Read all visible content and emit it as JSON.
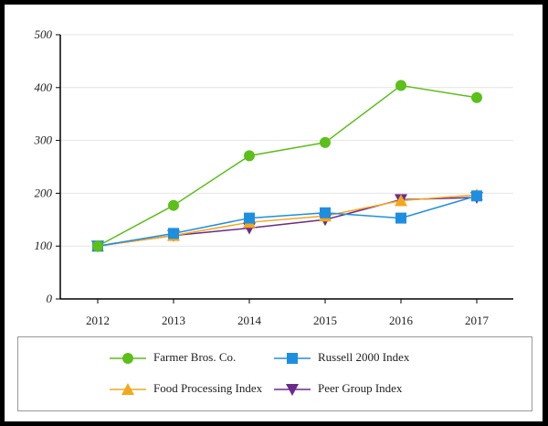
{
  "chart_data": {
    "type": "line",
    "x": [
      "2012",
      "2013",
      "2014",
      "2015",
      "2016",
      "2017"
    ],
    "ylim": [
      0,
      500
    ],
    "yticks": [
      0,
      100,
      200,
      300,
      400,
      500
    ],
    "grid": true,
    "legend_position": "bottom",
    "series": [
      {
        "name": "Farmer Bros. Co.",
        "color": "#5cbf1a",
        "marker": "circle",
        "values": [
          100,
          177,
          271,
          296,
          404,
          381
        ]
      },
      {
        "name": "Russell 2000 Index",
        "color": "#1e8fe0",
        "marker": "square",
        "values": [
          100,
          124,
          153,
          163,
          153,
          195
        ]
      },
      {
        "name": "Food Processing Index",
        "color": "#f2a81d",
        "marker": "triangle-up",
        "values": [
          100,
          120,
          145,
          157,
          186,
          197
        ]
      },
      {
        "name": "Peer Group Index",
        "color": "#6b2a8c",
        "marker": "triangle-down",
        "values": [
          100,
          120,
          134,
          150,
          188,
          192
        ]
      }
    ]
  }
}
